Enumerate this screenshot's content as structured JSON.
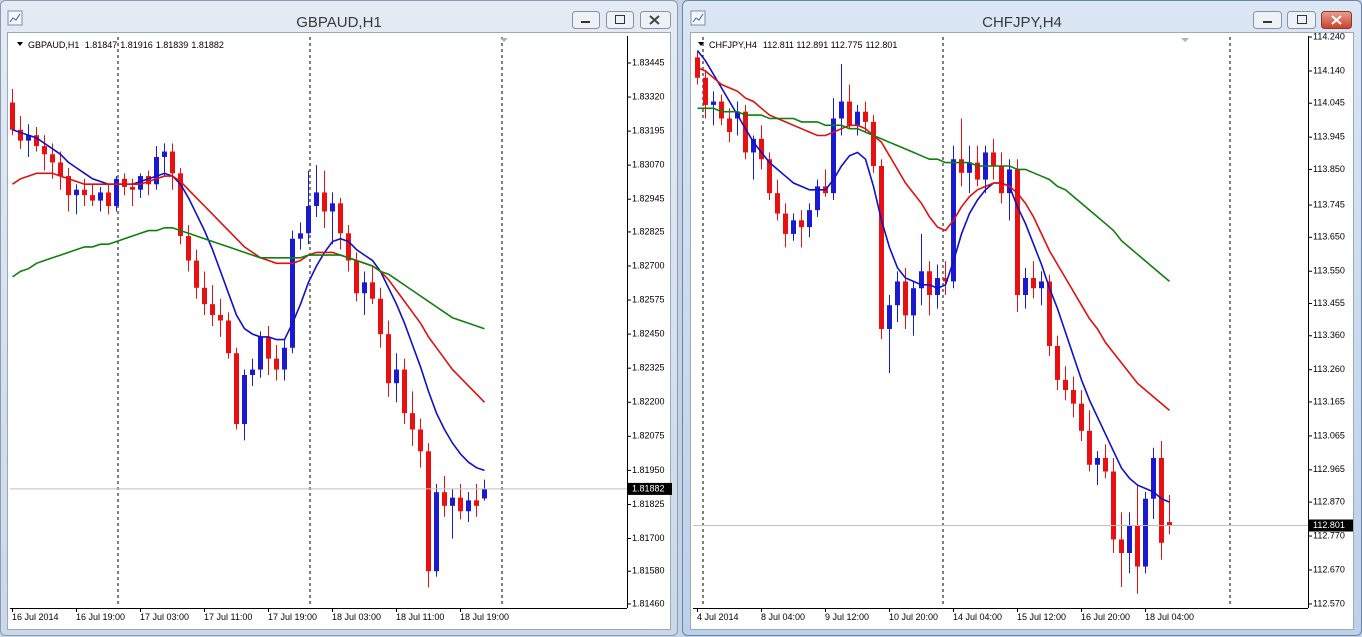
{
  "chart_data": [
    {
      "type": "candlestick",
      "title": "GBPAUD,H1",
      "x_labels": [
        "16 Jul 2014",
        "16 Jul 19:00",
        "17 Jul 03:00",
        "17 Jul 11:00",
        "17 Jul 19:00",
        "18 Jul 03:00",
        "18 Jul 11:00",
        "18 Jul 19:00"
      ],
      "open": [
        1.833,
        1.832,
        1.8316,
        1.8318,
        1.8314,
        1.8311,
        1.8308,
        1.8303,
        1.8296,
        1.8298,
        1.8296,
        1.8294,
        1.8297,
        1.8292,
        1.8302,
        1.8299,
        1.8298,
        1.8303,
        1.83,
        1.831,
        1.8312,
        1.8304,
        1.8281,
        1.8272,
        1.8262,
        1.8256,
        1.8252,
        1.825,
        1.8238,
        1.8212,
        1.823,
        1.8232,
        1.8244,
        1.8236,
        1.8232,
        1.824,
        1.828,
        1.8282,
        1.8292,
        1.8297,
        1.829,
        1.8293,
        1.8282,
        1.8272,
        1.826,
        1.8264,
        1.8258,
        1.8245,
        1.8227,
        1.8232,
        1.8216,
        1.821,
        1.8202,
        1.8158,
        1.8187,
        1.8182,
        1.8185,
        1.818,
        1.8184,
        1.81847
      ],
      "high": [
        1.8335,
        1.8325,
        1.8322,
        1.8321,
        1.8318,
        1.8315,
        1.8312,
        1.8306,
        1.83,
        1.8302,
        1.83,
        1.8299,
        1.83,
        1.8303,
        1.8304,
        1.8302,
        1.8304,
        1.8305,
        1.8314,
        1.8315,
        1.8315,
        1.8306,
        1.8285,
        1.8276,
        1.8268,
        1.8263,
        1.8258,
        1.8253,
        1.824,
        1.8232,
        1.8236,
        1.8246,
        1.8248,
        1.8241,
        1.8243,
        1.8283,
        1.8286,
        1.8305,
        1.8307,
        1.8305,
        1.8297,
        1.8295,
        1.8285,
        1.8275,
        1.8268,
        1.827,
        1.8262,
        1.825,
        1.8238,
        1.8236,
        1.8224,
        1.8214,
        1.8205,
        1.819,
        1.8193,
        1.8188,
        1.819,
        1.8187,
        1.819,
        1.81916
      ],
      "low": [
        1.8318,
        1.8313,
        1.831,
        1.8312,
        1.8305,
        1.8302,
        1.8298,
        1.829,
        1.8289,
        1.8292,
        1.8292,
        1.829,
        1.8289,
        1.829,
        1.8296,
        1.8292,
        1.8295,
        1.8296,
        1.8298,
        1.8303,
        1.8298,
        1.8278,
        1.8268,
        1.8258,
        1.8252,
        1.8248,
        1.8244,
        1.8236,
        1.821,
        1.8206,
        1.8226,
        1.8229,
        1.823,
        1.8228,
        1.8228,
        1.8238,
        1.8276,
        1.8278,
        1.8288,
        1.8284,
        1.8278,
        1.8276,
        1.8268,
        1.8257,
        1.8252,
        1.8256,
        1.824,
        1.8222,
        1.822,
        1.8212,
        1.8204,
        1.8196,
        1.8152,
        1.8156,
        1.8178,
        1.817,
        1.8177,
        1.8176,
        1.8178,
        1.81839
      ],
      "close": [
        1.832,
        1.8316,
        1.8318,
        1.8314,
        1.8311,
        1.8308,
        1.8303,
        1.8296,
        1.8298,
        1.8296,
        1.8294,
        1.8297,
        1.8292,
        1.8302,
        1.8299,
        1.8298,
        1.8303,
        1.83,
        1.831,
        1.8312,
        1.8304,
        1.8281,
        1.8272,
        1.8262,
        1.8256,
        1.8252,
        1.825,
        1.8238,
        1.8212,
        1.823,
        1.8232,
        1.8244,
        1.8236,
        1.8232,
        1.824,
        1.828,
        1.8282,
        1.8292,
        1.8297,
        1.829,
        1.8293,
        1.8282,
        1.8272,
        1.826,
        1.8264,
        1.8258,
        1.8245,
        1.8227,
        1.8232,
        1.8216,
        1.821,
        1.8202,
        1.8158,
        1.8187,
        1.8182,
        1.8185,
        1.818,
        1.8184,
        1.8182,
        1.81882
      ],
      "up_color": "#1a1ad2",
      "down_color": "#e81010",
      "series": [
        {
          "color": "#1010c8",
          "values": [
            1.832,
            1.8319,
            1.8318,
            1.8317,
            1.8315,
            1.8313,
            1.8311,
            1.8308,
            1.8306,
            1.8304,
            1.8302,
            1.8301,
            1.83,
            1.83,
            1.83,
            1.83,
            1.8301,
            1.8302,
            1.8303,
            1.8304,
            1.8303,
            1.83,
            1.8295,
            1.8289,
            1.8283,
            1.8276,
            1.8268,
            1.826,
            1.8252,
            1.8247,
            1.8245,
            1.8244,
            1.8244,
            1.8243,
            1.8243,
            1.8249,
            1.8256,
            1.8264,
            1.827,
            1.8275,
            1.8279,
            1.828,
            1.8279,
            1.8276,
            1.8274,
            1.8272,
            1.8268,
            1.8262,
            1.8256,
            1.8249,
            1.8241,
            1.8233,
            1.8224,
            1.8216,
            1.821,
            1.8205,
            1.8201,
            1.8198,
            1.8196,
            1.8195
          ]
        },
        {
          "color": "#dd1111",
          "values": [
            1.83,
            1.8302,
            1.8303,
            1.8304,
            1.8304,
            1.8304,
            1.8303,
            1.8302,
            1.8301,
            1.83,
            1.83,
            1.83,
            1.83,
            1.83,
            1.83,
            1.83,
            1.83,
            1.8301,
            1.8302,
            1.8303,
            1.8303,
            1.8301,
            1.8298,
            1.8295,
            1.8292,
            1.8289,
            1.8286,
            1.8283,
            1.828,
            1.8277,
            1.8275,
            1.8273,
            1.8272,
            1.8271,
            1.8271,
            1.8271,
            1.8272,
            1.8274,
            1.8275,
            1.8275,
            1.8275,
            1.8274,
            1.8273,
            1.8272,
            1.8271,
            1.827,
            1.8268,
            1.8265,
            1.8261,
            1.8257,
            1.8253,
            1.8249,
            1.8244,
            1.824,
            1.8236,
            1.8232,
            1.8229,
            1.8226,
            1.8223,
            1.822
          ]
        },
        {
          "color": "#0f7f0f",
          "values": [
            1.8266,
            1.8268,
            1.8269,
            1.8271,
            1.8272,
            1.8273,
            1.8274,
            1.8275,
            1.8276,
            1.8277,
            1.8277,
            1.8278,
            1.8278,
            1.8279,
            1.828,
            1.8281,
            1.8282,
            1.8283,
            1.8283,
            1.8284,
            1.8284,
            1.8283,
            1.8282,
            1.8281,
            1.828,
            1.8279,
            1.8278,
            1.8277,
            1.8276,
            1.8275,
            1.8274,
            1.8273,
            1.8273,
            1.8273,
            1.8273,
            1.8273,
            1.8273,
            1.8274,
            1.8274,
            1.8274,
            1.8274,
            1.8274,
            1.8273,
            1.8272,
            1.8271,
            1.827,
            1.8268,
            1.8267,
            1.8265,
            1.8263,
            1.8261,
            1.8259,
            1.8257,
            1.8255,
            1.8253,
            1.8251,
            1.825,
            1.8249,
            1.8248,
            1.8247
          ]
        }
      ],
      "ylim": [
        1.81445,
        1.83544
      ],
      "yticks": [
        1.83445,
        {
          "value": 1.8332,
          "label": "1.83320"
        },
        1.83195,
        {
          "value": 1.8307,
          "label": "1.83070"
        },
        1.82945,
        1.82825,
        {
          "value": 1.827,
          "label": "1.82700"
        },
        1.82575,
        {
          "value": 1.8245,
          "label": "1.82450"
        },
        1.82325,
        {
          "value": 1.822,
          "label": "1.82200"
        },
        1.82075,
        {
          "value": 1.8195,
          "label": "1.81950"
        },
        1.81825,
        {
          "value": 1.817,
          "label": "1.81700"
        },
        {
          "value": 1.8158,
          "label": "1.81580"
        },
        {
          "value": 1.8146,
          "label": "1.81460"
        }
      ]
    },
    {
      "type": "candlestick",
      "title": "CHFJPY,H4",
      "x_labels": [
        "4 Jul 2014",
        "8 Jul 04:00",
        "9 Jul 12:00",
        "10 Jul 20:00",
        "14 Jul 04:00",
        "15 Jul 12:00",
        "16 Jul 20:00",
        "18 Jul 04:00"
      ],
      "open": [
        114.18,
        114.12,
        114.04,
        114.05,
        114.0,
        114.0,
        114.02,
        113.9,
        113.94,
        113.88,
        113.78,
        113.72,
        113.66,
        113.7,
        113.68,
        113.73,
        113.8,
        113.78,
        114.0,
        114.05,
        113.98,
        114.02,
        113.99,
        113.86,
        113.38,
        113.45,
        113.52,
        113.42,
        113.5,
        113.55,
        113.48,
        113.53,
        113.52,
        113.88,
        113.84,
        113.87,
        113.82,
        113.9,
        113.86,
        113.78,
        113.85,
        113.48,
        113.53,
        113.5,
        113.52,
        113.33,
        113.23,
        113.2,
        113.16,
        113.08,
        112.98,
        113.0,
        112.96,
        112.76,
        112.72,
        112.8,
        112.68,
        112.88,
        113.0,
        112.811
      ],
      "high": [
        114.2,
        114.14,
        114.08,
        114.07,
        114.03,
        114.05,
        114.04,
        113.95,
        113.98,
        113.9,
        113.82,
        113.75,
        113.72,
        113.73,
        113.75,
        113.82,
        113.85,
        114.06,
        114.16,
        114.1,
        114.04,
        114.05,
        114.01,
        113.88,
        113.48,
        113.55,
        113.56,
        113.52,
        113.66,
        113.58,
        113.57,
        113.58,
        113.92,
        114.0,
        113.92,
        113.92,
        113.92,
        113.94,
        113.9,
        113.88,
        113.88,
        113.56,
        113.58,
        113.55,
        113.54,
        113.36,
        113.27,
        113.24,
        113.2,
        113.14,
        113.02,
        113.04,
        113.0,
        112.84,
        112.84,
        112.92,
        112.9,
        113.03,
        113.05,
        112.891
      ],
      "low": [
        114.1,
        114.0,
        113.98,
        113.98,
        113.93,
        113.95,
        113.88,
        113.82,
        113.85,
        113.76,
        113.7,
        113.62,
        113.64,
        113.62,
        113.65,
        113.71,
        113.77,
        113.76,
        113.95,
        113.97,
        113.95,
        113.96,
        113.84,
        113.35,
        113.25,
        113.4,
        113.38,
        113.36,
        113.45,
        113.42,
        113.44,
        113.48,
        113.5,
        113.8,
        113.78,
        113.8,
        113.78,
        113.82,
        113.75,
        113.7,
        113.43,
        113.44,
        113.47,
        113.45,
        113.3,
        113.2,
        113.17,
        113.12,
        113.05,
        112.96,
        112.92,
        112.94,
        112.72,
        112.62,
        112.66,
        112.6,
        112.66,
        112.82,
        112.7,
        112.775
      ],
      "close": [
        114.12,
        114.04,
        114.05,
        114.0,
        113.96,
        114.02,
        113.9,
        113.94,
        113.88,
        113.78,
        113.72,
        113.66,
        113.7,
        113.68,
        113.73,
        113.8,
        113.78,
        114.0,
        114.05,
        113.98,
        114.02,
        113.99,
        113.86,
        113.38,
        113.45,
        113.52,
        113.42,
        113.5,
        113.55,
        113.48,
        113.53,
        113.52,
        113.88,
        113.84,
        113.87,
        113.82,
        113.9,
        113.86,
        113.78,
        113.85,
        113.48,
        113.53,
        113.5,
        113.52,
        113.33,
        113.23,
        113.2,
        113.16,
        113.08,
        112.98,
        113.0,
        112.96,
        112.76,
        112.72,
        112.8,
        112.68,
        112.88,
        113.0,
        112.75,
        112.801
      ],
      "up_color": "#1a1ad2",
      "down_color": "#e81010",
      "series": [
        {
          "color": "#1010c8",
          "values": [
            114.2,
            114.17,
            114.13,
            114.09,
            114.05,
            114.01,
            113.97,
            113.93,
            113.9,
            113.87,
            113.85,
            113.83,
            113.81,
            113.8,
            113.79,
            113.79,
            113.79,
            113.82,
            113.86,
            113.89,
            113.9,
            113.88,
            113.8,
            113.7,
            113.62,
            113.56,
            113.53,
            113.52,
            113.51,
            113.51,
            113.5,
            113.51,
            113.58,
            113.66,
            113.72,
            113.76,
            113.79,
            113.81,
            113.81,
            113.8,
            113.74,
            113.69,
            113.63,
            113.57,
            113.5,
            113.44,
            113.37,
            113.3,
            113.23,
            113.17,
            113.12,
            113.07,
            113.02,
            112.97,
            112.94,
            112.92,
            112.91,
            112.9,
            112.88,
            112.87
          ]
        },
        {
          "color": "#dd1111",
          "values": [
            114.15,
            114.14,
            114.12,
            114.1,
            114.09,
            114.08,
            114.06,
            114.05,
            114.03,
            114.01,
            114.0,
            113.99,
            113.98,
            113.97,
            113.96,
            113.95,
            113.95,
            113.96,
            113.97,
            113.98,
            113.98,
            113.97,
            113.95,
            113.93,
            113.89,
            113.85,
            113.81,
            113.78,
            113.75,
            113.71,
            113.68,
            113.67,
            113.7,
            113.74,
            113.77,
            113.79,
            113.8,
            113.81,
            113.81,
            113.8,
            113.78,
            113.75,
            113.71,
            113.66,
            113.61,
            113.57,
            113.53,
            113.49,
            113.45,
            113.41,
            113.38,
            113.34,
            113.31,
            113.28,
            113.25,
            113.22,
            113.2,
            113.18,
            113.16,
            113.14
          ]
        },
        {
          "color": "#0f7f0f",
          "values": [
            114.03,
            114.03,
            114.03,
            114.02,
            114.02,
            114.02,
            114.01,
            114.01,
            114.01,
            114.0,
            114.0,
            114.0,
            114.0,
            113.99,
            113.99,
            113.99,
            113.98,
            113.98,
            113.98,
            113.97,
            113.97,
            113.96,
            113.95,
            113.94,
            113.93,
            113.92,
            113.91,
            113.9,
            113.89,
            113.88,
            113.88,
            113.87,
            113.87,
            113.87,
            113.87,
            113.86,
            113.86,
            113.86,
            113.86,
            113.86,
            113.85,
            113.85,
            113.84,
            113.83,
            113.82,
            113.8,
            113.79,
            113.77,
            113.75,
            113.73,
            113.71,
            113.69,
            113.67,
            113.64,
            113.62,
            113.6,
            113.58,
            113.56,
            113.54,
            113.52
          ]
        }
      ],
      "ylim": [
        112.558,
        114.243
      ],
      "yticks": [
        {
          "value": 114.24,
          "label": "114.240"
        },
        {
          "value": 114.14,
          "label": "114.140"
        },
        114.045,
        113.945,
        {
          "value": 113.85,
          "label": "113.850"
        },
        113.745,
        {
          "value": 113.65,
          "label": "113.650"
        },
        {
          "value": 113.55,
          "label": "113.550"
        },
        113.455,
        {
          "value": 113.36,
          "label": "113.360"
        },
        {
          "value": 113.26,
          "label": "113.260"
        },
        113.165,
        113.065,
        112.965,
        {
          "value": 112.87,
          "label": "112.870"
        },
        {
          "value": 112.77,
          "label": "112.770"
        },
        {
          "value": 112.67,
          "label": "112.670"
        },
        {
          "value": 112.57,
          "label": "112.570"
        }
      ]
    }
  ]
}
